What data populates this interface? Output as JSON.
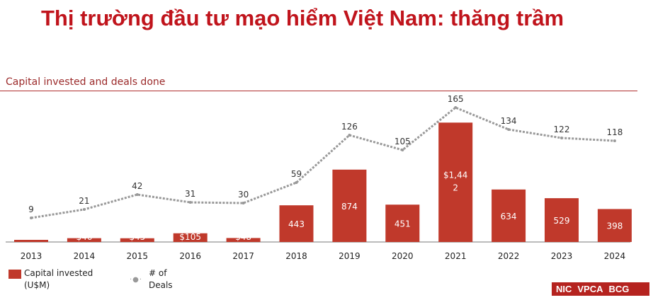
{
  "title": "Thị trường đầu tư mạo hiểm Việt Nam: thăng trầm",
  "chart_data": {
    "type": "bar",
    "title": "Capital invested and deals done",
    "categories": [
      "2013",
      "2014",
      "2015",
      "2016",
      "2017",
      "2018",
      "2019",
      "2020",
      "2021",
      "2022",
      "2023",
      "2024"
    ],
    "series": [
      {
        "name": "Capital invested (U$M)",
        "type": "bar",
        "values": [
          10,
          46,
          45,
          105,
          48,
          443,
          874,
          451,
          1442,
          634,
          529,
          398
        ],
        "labels": [
          "",
          "$46",
          "$45",
          "$105",
          "$48",
          "443",
          "874",
          "451",
          "$1,442",
          "634",
          "529",
          "398"
        ],
        "color": "#c0392b"
      },
      {
        "name": "# of Deals",
        "type": "line",
        "values": [
          9,
          21,
          42,
          31,
          30,
          59,
          126,
          105,
          165,
          134,
          122,
          118
        ],
        "color": "#999999"
      }
    ],
    "legend": [
      {
        "label": "Capital invested",
        "label2": "(U$M)"
      },
      {
        "label": "# of",
        "label2": "Deals"
      }
    ],
    "legend_position": "bottom-left"
  },
  "logos": [
    "NIC",
    "VPCA",
    "BCG"
  ]
}
